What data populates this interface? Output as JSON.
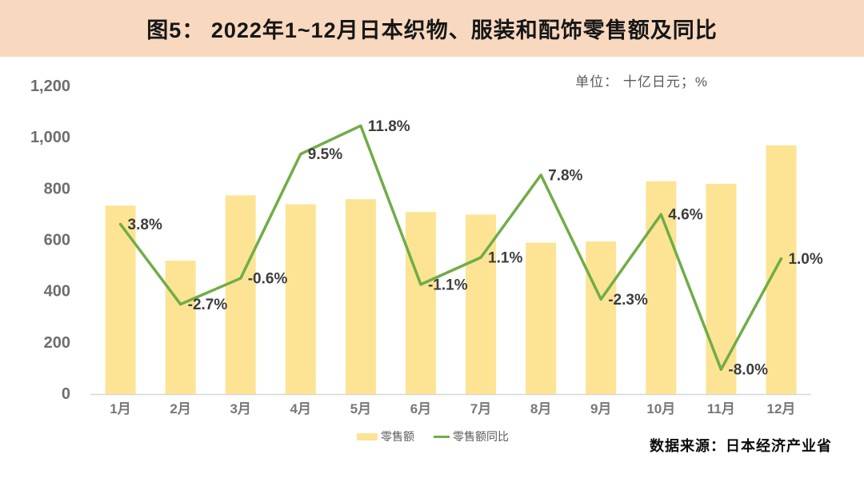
{
  "header": {
    "title": "图5： 2022年1~12月日本织物、服装和配饰零售额及同比"
  },
  "unit_label": "单位： 十亿日元；%",
  "legend": {
    "bar_label": "零售额",
    "line_label": "零售额同比"
  },
  "footer": {
    "source": "数据来源：日本经济产业省"
  },
  "colors": {
    "header_bg": "#F8D8BF",
    "bar": "#FCE494",
    "line": "#6FAD47",
    "data_label": "#3D3D3D",
    "axis_text": "#6E6E6E",
    "axis_line": "#D6D6D6"
  },
  "chart_data": {
    "type": "bar",
    "title": "2022年1~12月日本织物、服装和配饰零售额及同比",
    "xlabel": "",
    "ylabel": "十亿日元；%",
    "grid": false,
    "legend_position": "bottom",
    "categories": [
      "1月",
      "2月",
      "3月",
      "4月",
      "5月",
      "6月",
      "7月",
      "8月",
      "9月",
      "10月",
      "11月",
      "12月"
    ],
    "series": [
      {
        "name": "零售额",
        "type": "bar",
        "axis": "left",
        "values": [
          735,
          520,
          775,
          740,
          760,
          710,
          700,
          590,
          595,
          830,
          820,
          970
        ]
      },
      {
        "name": "零售额同比",
        "type": "line",
        "axis": "right",
        "values": [
          3.8,
          -2.7,
          -0.6,
          9.5,
          11.8,
          -1.1,
          1.1,
          7.8,
          -2.3,
          4.6,
          -8.0,
          1.0
        ],
        "labels": [
          "3.8%",
          "-2.7%",
          "-0.6%",
          "9.5%",
          "11.8%",
          "-1.1%",
          "1.1%",
          "7.8%",
          "-2.3%",
          "4.6%",
          "-8.0%",
          "1.0%"
        ]
      }
    ],
    "y_axis_left": {
      "min": 0,
      "max": 1200,
      "ticks": [
        "1,200",
        "1,000",
        "800",
        "600",
        "400",
        "200",
        "0"
      ],
      "tick_values": [
        1200,
        1000,
        800,
        600,
        400,
        200,
        0
      ]
    },
    "y_axis_right": {
      "min": -10,
      "max": 15,
      "visible": false
    }
  }
}
